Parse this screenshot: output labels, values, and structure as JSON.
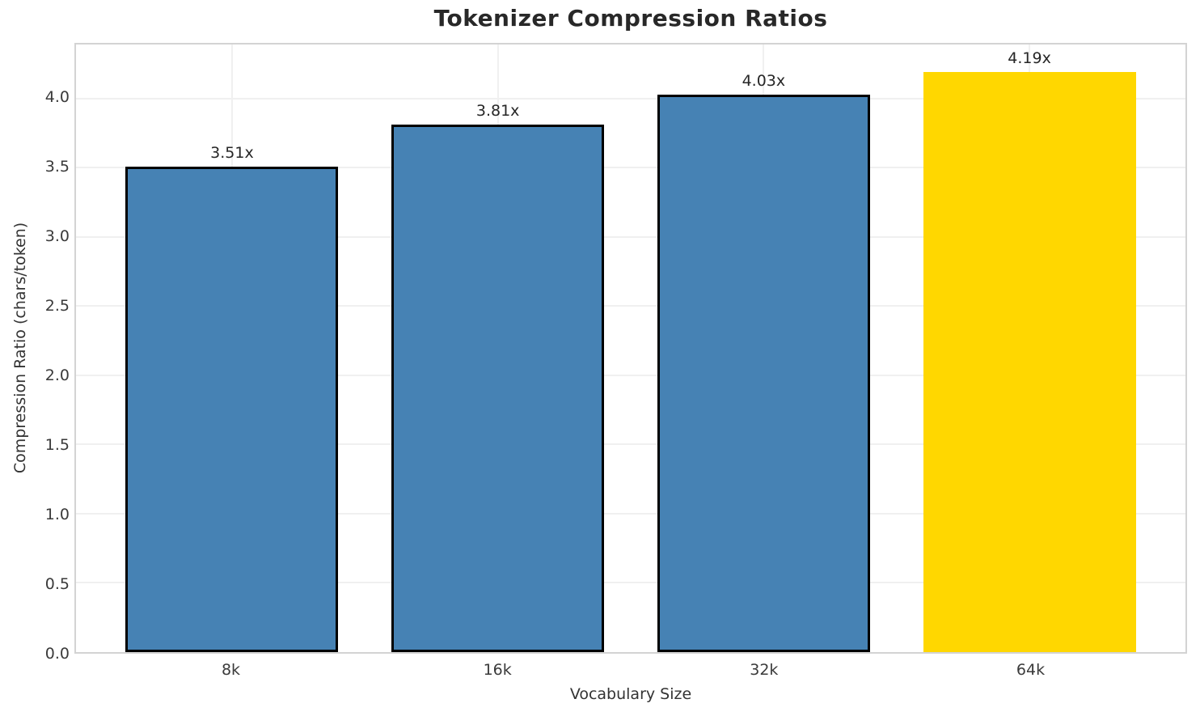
{
  "chart_data": {
    "type": "bar",
    "title": "Tokenizer Compression Ratios",
    "xlabel": "Vocabulary Size",
    "ylabel": "Compression Ratio (chars/token)",
    "categories": [
      "8k",
      "16k",
      "32k",
      "64k"
    ],
    "values": [
      3.51,
      3.81,
      4.03,
      4.19
    ],
    "bar_labels": [
      "3.51x",
      "3.81x",
      "4.03x",
      "4.19x"
    ],
    "ytick_labels": [
      "0.0",
      "0.5",
      "1.0",
      "1.5",
      "2.0",
      "2.5",
      "3.0",
      "3.5",
      "4.0"
    ],
    "yticks": [
      0.0,
      0.5,
      1.0,
      1.5,
      2.0,
      2.5,
      3.0,
      3.5,
      4.0
    ],
    "ylim": [
      0,
      4.39
    ],
    "xlim": [
      -0.587,
      3.587
    ],
    "bar_half_width": 0.4,
    "grid": true,
    "legend": "none",
    "highlight_index": 3,
    "colors": {
      "bar_default": "#4682b4",
      "bar_highlight": "#ffd700",
      "bar_edge": "#000000",
      "grid_line": "#f0f0f0",
      "spine": "#d3d3d3",
      "title_text": "#282828",
      "tick_text": "#3a3a3a"
    },
    "bar_colors": [
      "#4682b4",
      "#4682b4",
      "#4682b4",
      "#ffd700"
    ],
    "bar_has_edge": [
      true,
      true,
      true,
      false
    ]
  }
}
